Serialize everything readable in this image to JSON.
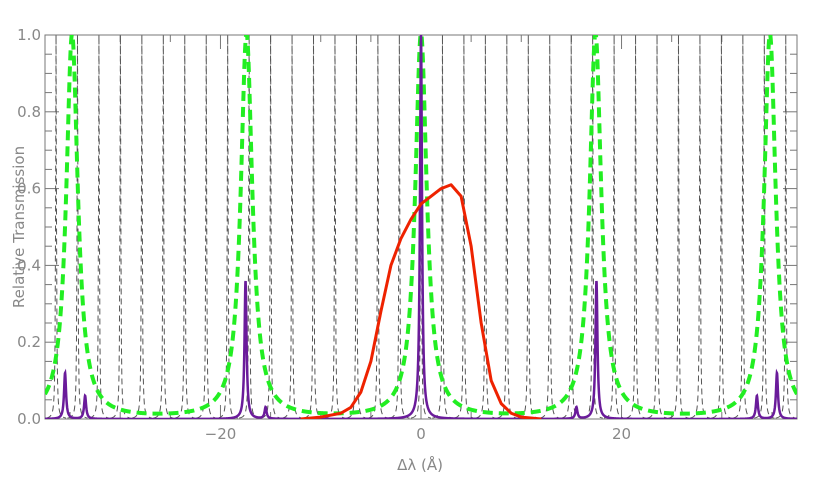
{
  "chart_data": {
    "type": "line",
    "xlabel": "Δλ (Å)",
    "ylabel": "Relative Transmission",
    "xlim": [
      -37.5,
      37.5
    ],
    "ylim": [
      0.0,
      1.0
    ],
    "x_ticks": [
      -20,
      0,
      20
    ],
    "x_tick_labels": [
      "−20",
      "0",
      "20"
    ],
    "y_ticks": [
      0.0,
      0.2,
      0.4,
      0.6,
      0.8,
      1.0
    ],
    "y_tick_labels": [
      "0.0",
      "0.2",
      "0.4",
      "0.6",
      "0.8",
      "1.0"
    ],
    "grid": false,
    "legend": "none",
    "series": [
      {
        "style": "dashed-thin",
        "color": "#555555",
        "description_values": "narrow Lorentzian comb, peak 1.0, spacing 2.14",
        "peaks": [
          -36.4,
          -34.26,
          -32.12,
          -29.98,
          -27.84,
          -25.7,
          -23.56,
          -21.42,
          -19.28,
          -17.14,
          -15.0,
          -12.86,
          -10.72,
          -8.58,
          -6.44,
          -4.3,
          -2.16,
          0.0,
          2.14,
          4.28,
          6.42,
          8.56,
          10.7,
          12.84,
          14.98,
          17.12,
          19.26,
          21.4,
          23.54,
          25.68,
          27.82,
          29.96,
          32.1,
          34.24,
          36.38
        ],
        "peak_value": 1.0,
        "half_width": 0.05
      },
      {
        "style": "dashed-thick",
        "color": "#22ee22",
        "peaks": [
          -34.8,
          -17.4,
          0.0,
          17.4,
          34.8
        ],
        "peak_value": 1.0,
        "half_width": 0.7
      },
      {
        "style": "solid",
        "color": "#6a1b9a",
        "peaks": [
          {
            "x": -35.5,
            "y": 0.12
          },
          {
            "x": -33.5,
            "y": 0.06
          },
          {
            "x": -17.5,
            "y": 0.36
          },
          {
            "x": -15.5,
            "y": 0.03
          },
          {
            "x": 0.0,
            "y": 1.0
          },
          {
            "x": 15.5,
            "y": 0.03
          },
          {
            "x": 17.5,
            "y": 0.36
          },
          {
            "x": 33.5,
            "y": 0.06
          },
          {
            "x": 35.5,
            "y": 0.12
          }
        ],
        "half_width": 0.12
      },
      {
        "style": "solid-thick",
        "color": "#ee2200",
        "x": [
          -12,
          -10,
          -8,
          -7,
          -6,
          -5,
          -4,
          -3,
          -2,
          -1,
          0,
          1,
          2,
          3,
          4,
          5,
          6,
          7,
          8,
          9,
          10,
          12
        ],
        "y": [
          0.0,
          0.005,
          0.015,
          0.03,
          0.07,
          0.15,
          0.28,
          0.4,
          0.47,
          0.52,
          0.56,
          0.58,
          0.6,
          0.61,
          0.58,
          0.45,
          0.25,
          0.1,
          0.04,
          0.015,
          0.005,
          0.0
        ]
      }
    ]
  }
}
